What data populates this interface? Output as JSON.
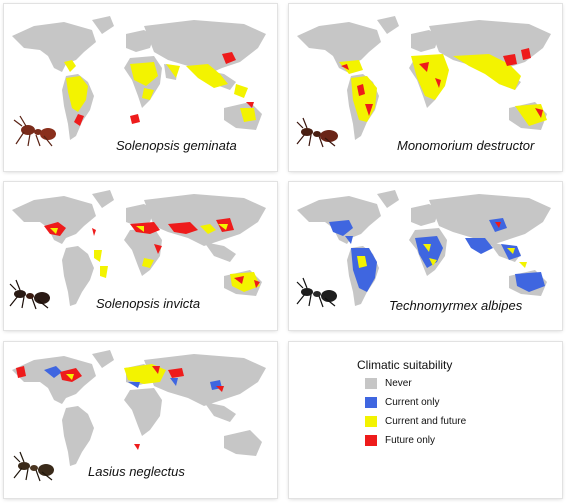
{
  "colors": {
    "land": "#c6c6c6",
    "never": "#c6c6c6",
    "current_only": "#3f66e0",
    "current_and_future": "#f3f300",
    "future_only": "#ee1b1b",
    "ant_body": "#7a2b1a"
  },
  "maps": [
    {
      "species": "Solenopsis geminata",
      "pattern": "tropical-yellow-red"
    },
    {
      "species": "Monomorium destructor",
      "pattern": "tropical-yellow-red-dense"
    },
    {
      "species": "Solenopsis invicta",
      "pattern": "subtropical-red-yellow"
    },
    {
      "species": "Technomyrmex albipes",
      "pattern": "tropical-blue"
    },
    {
      "species": "Lasius neglectus",
      "pattern": "temperate-yellow-red"
    }
  ],
  "legend": {
    "title": "Climatic suitability",
    "items": [
      {
        "label": "Never",
        "color": "#c6c6c6"
      },
      {
        "label": "Current only",
        "color": "#3f66e0"
      },
      {
        "label": "Current and future",
        "color": "#f3f300"
      },
      {
        "label": "Future only",
        "color": "#ee1b1b"
      }
    ]
  }
}
